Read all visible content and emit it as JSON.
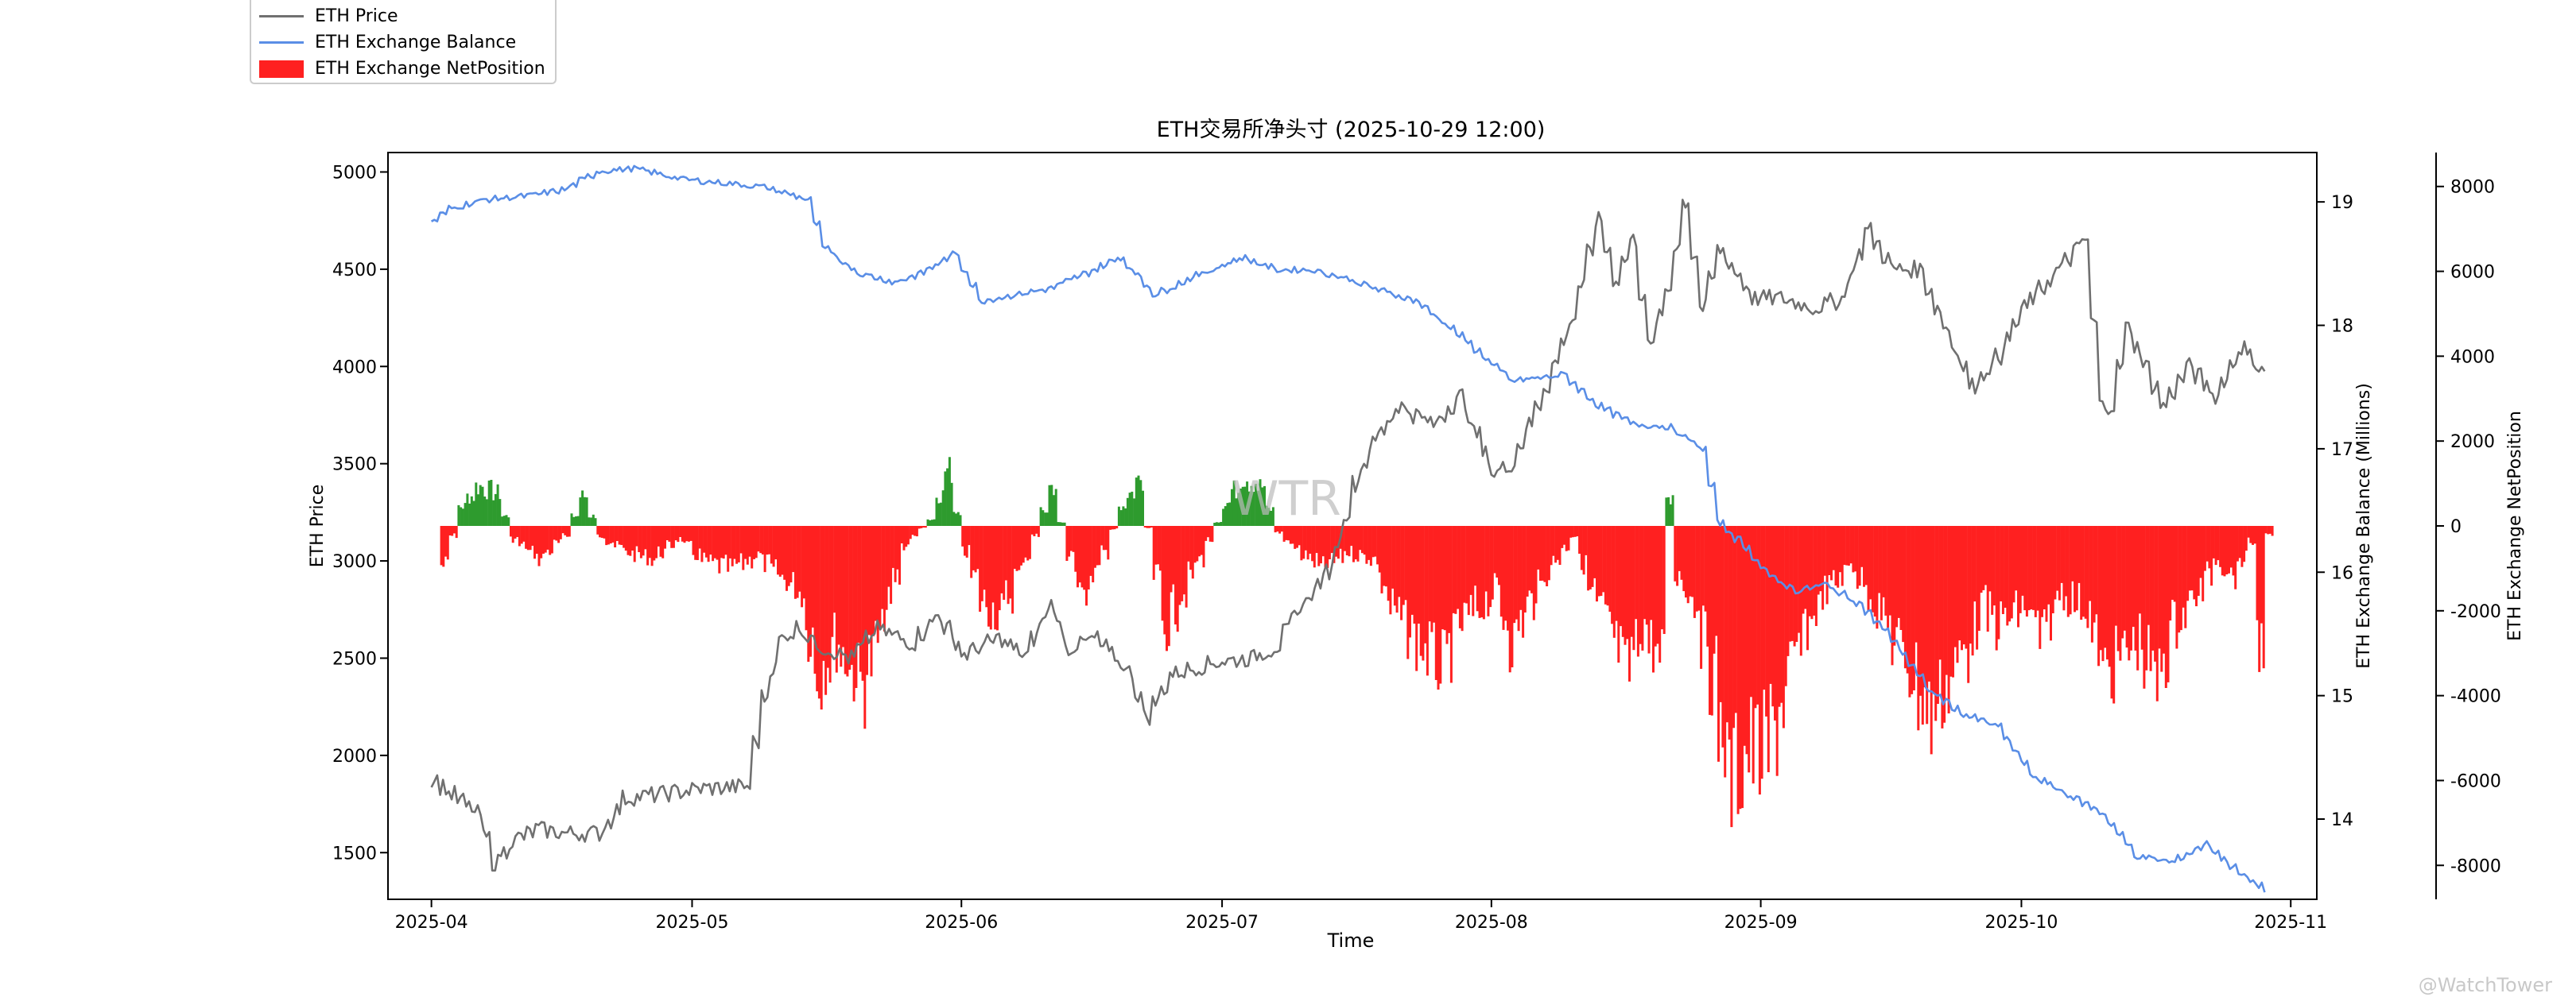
{
  "chart_data": {
    "type": "line",
    "title": "ETH交易所净头寸 (2025-10-29 12:00)",
    "xlabel": "Time",
    "x_ticks": [
      "2025-04",
      "2025-05",
      "2025-06",
      "2025-07",
      "2025-08",
      "2025-09",
      "2025-10",
      "2025-11"
    ],
    "x_range": [
      "2025-03-27",
      "2025-11-04"
    ],
    "axes": {
      "price": {
        "label": "ETH Price",
        "side": "left",
        "ylim": [
          1260,
          5100
        ],
        "ticks": [
          1500,
          2000,
          2500,
          3000,
          3500,
          4000,
          4500,
          5000
        ]
      },
      "balance": {
        "label": "ETH Exchange Balance (Millions)",
        "side": "right",
        "ylim": [
          13.35,
          19.4
        ],
        "ticks": [
          14,
          15,
          16,
          17,
          18,
          19
        ]
      },
      "netposition": {
        "label": "ETH Exchange NetPosition",
        "side": "right-outer",
        "ylim": [
          -8800,
          8800
        ],
        "ticks": [
          -8000,
          -6000,
          -4000,
          -2000,
          0,
          2000,
          4000,
          6000,
          8000
        ]
      }
    },
    "legend_placement": "top-left",
    "grid": false,
    "watermark": "WTR",
    "corner_watermark": "@WatchTower",
    "series": [
      {
        "name": "ETH Price",
        "axis": "price",
        "kind": "line",
        "color": "#707070",
        "points": [
          [
            "2025-04-01",
            1880
          ],
          [
            "2025-04-03",
            1800
          ],
          [
            "2025-04-06",
            1700
          ],
          [
            "2025-04-08",
            1450
          ],
          [
            "2025-04-10",
            1560
          ],
          [
            "2025-04-13",
            1620
          ],
          [
            "2025-04-16",
            1600
          ],
          [
            "2025-04-20",
            1600
          ],
          [
            "2025-04-23",
            1780
          ],
          [
            "2025-04-27",
            1800
          ],
          [
            "2025-05-02",
            1830
          ],
          [
            "2025-05-07",
            1840
          ],
          [
            "2025-05-09",
            2300
          ],
          [
            "2025-05-11",
            2600
          ],
          [
            "2025-05-13",
            2660
          ],
          [
            "2025-05-15",
            2570
          ],
          [
            "2025-05-19",
            2500
          ],
          [
            "2025-05-22",
            2650
          ],
          [
            "2025-05-26",
            2580
          ],
          [
            "2025-05-29",
            2720
          ],
          [
            "2025-06-01",
            2520
          ],
          [
            "2025-06-05",
            2600
          ],
          [
            "2025-06-08",
            2510
          ],
          [
            "2025-06-11",
            2780
          ],
          [
            "2025-06-13",
            2550
          ],
          [
            "2025-06-16",
            2600
          ],
          [
            "2025-06-20",
            2430
          ],
          [
            "2025-06-22",
            2200
          ],
          [
            "2025-06-25",
            2420
          ],
          [
            "2025-06-30",
            2480
          ],
          [
            "2025-07-04",
            2500
          ],
          [
            "2025-07-07",
            2560
          ],
          [
            "2025-07-10",
            2780
          ],
          [
            "2025-07-13",
            2950
          ],
          [
            "2025-07-16",
            3400
          ],
          [
            "2025-07-18",
            3600
          ],
          [
            "2025-07-21",
            3800
          ],
          [
            "2025-07-25",
            3700
          ],
          [
            "2025-07-28",
            3850
          ],
          [
            "2025-08-01",
            3450
          ],
          [
            "2025-08-03",
            3500
          ],
          [
            "2025-08-07",
            3900
          ],
          [
            "2025-08-10",
            4250
          ],
          [
            "2025-08-13",
            4750
          ],
          [
            "2025-08-15",
            4450
          ],
          [
            "2025-08-17",
            4650
          ],
          [
            "2025-08-19",
            4100
          ],
          [
            "2025-08-21",
            4400
          ],
          [
            "2025-08-23",
            4850
          ],
          [
            "2025-08-25",
            4300
          ],
          [
            "2025-08-27",
            4600
          ],
          [
            "2025-08-31",
            4350
          ],
          [
            "2025-09-03",
            4350
          ],
          [
            "2025-09-07",
            4300
          ],
          [
            "2025-09-10",
            4350
          ],
          [
            "2025-09-13",
            4700
          ],
          [
            "2025-09-16",
            4500
          ],
          [
            "2025-09-19",
            4500
          ],
          [
            "2025-09-22",
            4200
          ],
          [
            "2025-09-25",
            3900
          ],
          [
            "2025-09-28",
            4050
          ],
          [
            "2025-10-01",
            4300
          ],
          [
            "2025-10-05",
            4500
          ],
          [
            "2025-10-08",
            4650
          ],
          [
            "2025-10-10",
            3800
          ],
          [
            "2025-10-11",
            3800
          ],
          [
            "2025-10-13",
            4200
          ],
          [
            "2025-10-15",
            4000
          ],
          [
            "2025-10-17",
            3800
          ],
          [
            "2025-10-20",
            4000
          ],
          [
            "2025-10-23",
            3850
          ],
          [
            "2025-10-26",
            4100
          ],
          [
            "2025-10-29",
            3950
          ]
        ]
      },
      {
        "name": "ETH Exchange Balance",
        "axis": "balance",
        "kind": "line",
        "color": "#5a8ee6",
        "points": [
          [
            "2025-04-01",
            18.85
          ],
          [
            "2025-04-03",
            18.95
          ],
          [
            "2025-04-07",
            19.02
          ],
          [
            "2025-04-12",
            19.05
          ],
          [
            "2025-04-16",
            19.1
          ],
          [
            "2025-04-20",
            19.25
          ],
          [
            "2025-04-24",
            19.27
          ],
          [
            "2025-04-30",
            19.18
          ],
          [
            "2025-05-05",
            19.15
          ],
          [
            "2025-05-09",
            19.12
          ],
          [
            "2025-05-14",
            19.02
          ],
          [
            "2025-05-16",
            18.62
          ],
          [
            "2025-05-20",
            18.42
          ],
          [
            "2025-05-24",
            18.35
          ],
          [
            "2025-05-27",
            18.42
          ],
          [
            "2025-05-31",
            18.58
          ],
          [
            "2025-06-03",
            18.2
          ],
          [
            "2025-06-07",
            18.25
          ],
          [
            "2025-06-11",
            18.3
          ],
          [
            "2025-06-15",
            18.42
          ],
          [
            "2025-06-19",
            18.55
          ],
          [
            "2025-06-23",
            18.25
          ],
          [
            "2025-06-27",
            18.38
          ],
          [
            "2025-07-03",
            18.55
          ],
          [
            "2025-07-07",
            18.45
          ],
          [
            "2025-07-11",
            18.45
          ],
          [
            "2025-07-15",
            18.38
          ],
          [
            "2025-07-19",
            18.28
          ],
          [
            "2025-07-23",
            18.2
          ],
          [
            "2025-07-27",
            17.98
          ],
          [
            "2025-07-30",
            17.8
          ],
          [
            "2025-08-03",
            17.55
          ],
          [
            "2025-08-07",
            17.58
          ],
          [
            "2025-08-09",
            17.6
          ],
          [
            "2025-08-13",
            17.35
          ],
          [
            "2025-08-17",
            17.2
          ],
          [
            "2025-08-21",
            17.18
          ],
          [
            "2025-08-25",
            17.0
          ],
          [
            "2025-08-27",
            16.4
          ],
          [
            "2025-08-30",
            16.2
          ],
          [
            "2025-09-02",
            15.95
          ],
          [
            "2025-09-05",
            15.85
          ],
          [
            "2025-09-08",
            15.9
          ],
          [
            "2025-09-12",
            15.75
          ],
          [
            "2025-09-16",
            15.45
          ],
          [
            "2025-09-20",
            15.05
          ],
          [
            "2025-09-24",
            14.85
          ],
          [
            "2025-09-28",
            14.75
          ],
          [
            "2025-10-02",
            14.35
          ],
          [
            "2025-10-06",
            14.2
          ],
          [
            "2025-10-10",
            14.05
          ],
          [
            "2025-10-14",
            13.7
          ],
          [
            "2025-10-18",
            13.65
          ],
          [
            "2025-10-22",
            13.8
          ],
          [
            "2025-10-26",
            13.55
          ],
          [
            "2025-10-29",
            13.42
          ]
        ]
      },
      {
        "name": "ETH Exchange NetPosition",
        "axis": "netposition",
        "kind": "bar",
        "color": "#ff2020",
        "positive_color": "#2e9b2e",
        "points": [
          [
            "2025-04-02",
            -1200
          ],
          [
            "2025-04-04",
            600
          ],
          [
            "2025-04-06",
            1200
          ],
          [
            "2025-04-08",
            1000
          ],
          [
            "2025-04-10",
            -400
          ],
          [
            "2025-04-13",
            -1000
          ],
          [
            "2025-04-16",
            -300
          ],
          [
            "2025-04-18",
            900
          ],
          [
            "2025-04-20",
            -300
          ],
          [
            "2025-04-23",
            -800
          ],
          [
            "2025-04-26",
            -1000
          ],
          [
            "2025-04-29",
            -400
          ],
          [
            "2025-05-02",
            -1100
          ],
          [
            "2025-05-05",
            -1300
          ],
          [
            "2025-05-08",
            -900
          ],
          [
            "2025-05-10",
            -1400
          ],
          [
            "2025-05-13",
            -2000
          ],
          [
            "2025-05-15",
            -4500
          ],
          [
            "2025-05-17",
            -3500
          ],
          [
            "2025-05-20",
            -4800
          ],
          [
            "2025-05-22",
            -3500
          ],
          [
            "2025-05-25",
            -600
          ],
          [
            "2025-05-28",
            200
          ],
          [
            "2025-05-30",
            1700
          ],
          [
            "2025-06-01",
            -800
          ],
          [
            "2025-06-03",
            -2300
          ],
          [
            "2025-06-05",
            -2700
          ],
          [
            "2025-06-07",
            -1500
          ],
          [
            "2025-06-09",
            -300
          ],
          [
            "2025-06-11",
            1200
          ],
          [
            "2025-06-13",
            -1000
          ],
          [
            "2025-06-15",
            -2000
          ],
          [
            "2025-06-17",
            -800
          ],
          [
            "2025-06-19",
            600
          ],
          [
            "2025-06-21",
            1400
          ],
          [
            "2025-06-24",
            -3000
          ],
          [
            "2025-06-26",
            -2000
          ],
          [
            "2025-06-28",
            -1000
          ],
          [
            "2025-07-01",
            700
          ],
          [
            "2025-07-03",
            1500
          ],
          [
            "2025-07-05",
            1200
          ],
          [
            "2025-07-07",
            -200
          ],
          [
            "2025-07-09",
            -700
          ],
          [
            "2025-07-12",
            -1300
          ],
          [
            "2025-07-15",
            -800
          ],
          [
            "2025-07-18",
            -1000
          ],
          [
            "2025-07-20",
            -2500
          ],
          [
            "2025-07-23",
            -3500
          ],
          [
            "2025-07-26",
            -4400
          ],
          [
            "2025-07-28",
            -3000
          ],
          [
            "2025-08-01",
            -2000
          ],
          [
            "2025-08-03",
            -3500
          ],
          [
            "2025-08-05",
            -2300
          ],
          [
            "2025-08-08",
            -1000
          ],
          [
            "2025-08-10",
            -300
          ],
          [
            "2025-08-12",
            -2000
          ],
          [
            "2025-08-14",
            -3000
          ],
          [
            "2025-08-16",
            -4500
          ],
          [
            "2025-08-18",
            -3000
          ],
          [
            "2025-08-20",
            -4200
          ],
          [
            "2025-08-21",
            800
          ],
          [
            "2025-08-22",
            -1500
          ],
          [
            "2025-08-24",
            -2300
          ],
          [
            "2025-08-26",
            -4500
          ],
          [
            "2025-08-28",
            -7800
          ],
          [
            "2025-08-30",
            -6800
          ],
          [
            "2025-09-01",
            -7000
          ],
          [
            "2025-09-04",
            -4500
          ],
          [
            "2025-09-06",
            -3000
          ],
          [
            "2025-09-08",
            -2000
          ],
          [
            "2025-09-11",
            -1200
          ],
          [
            "2025-09-14",
            -2500
          ],
          [
            "2025-09-16",
            -3500
          ],
          [
            "2025-09-18",
            -4500
          ],
          [
            "2025-09-20",
            -5800
          ],
          [
            "2025-09-22",
            -4800
          ],
          [
            "2025-09-24",
            -3800
          ],
          [
            "2025-09-26",
            -2500
          ],
          [
            "2025-09-28",
            -3000
          ],
          [
            "2025-10-01",
            -2500
          ],
          [
            "2025-10-03",
            -3500
          ],
          [
            "2025-10-05",
            -2000
          ],
          [
            "2025-10-08",
            -2500
          ],
          [
            "2025-10-10",
            -4500
          ],
          [
            "2025-10-12",
            -4000
          ],
          [
            "2025-10-14",
            -3500
          ],
          [
            "2025-10-16",
            -4800
          ],
          [
            "2025-10-18",
            -3000
          ],
          [
            "2025-10-21",
            -2000
          ],
          [
            "2025-10-23",
            -1000
          ],
          [
            "2025-10-25",
            -1500
          ],
          [
            "2025-10-27",
            -500
          ],
          [
            "2025-10-28",
            -3500
          ],
          [
            "2025-10-29",
            -300
          ]
        ]
      }
    ]
  }
}
